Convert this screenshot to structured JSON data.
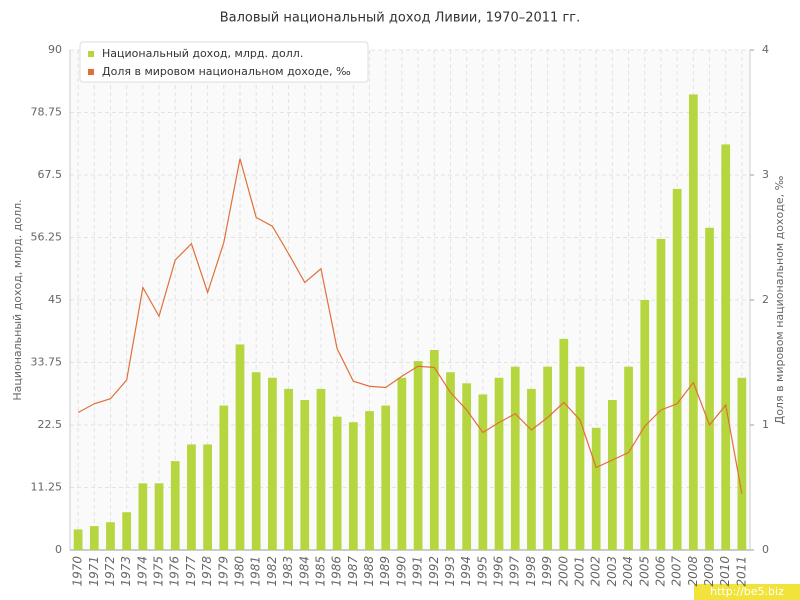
{
  "chart_data": {
    "type": "bar_line",
    "title": "Валовый национальный доход Ливии, 1970–2011 гг.",
    "y_label": "Национальный доход, млрд. долл.",
    "y2_label": "Доля в мировом национальном доходе, ‰",
    "watermark": "http://be5.biz",
    "categories": [
      "1970",
      "1971",
      "1972",
      "1973",
      "1974",
      "1975",
      "1976",
      "1977",
      "1978",
      "1979",
      "1980",
      "1981",
      "1982",
      "1983",
      "1984",
      "1985",
      "1986",
      "1987",
      "1988",
      "1989",
      "1990",
      "1991",
      "1992",
      "1993",
      "1994",
      "1995",
      "1996",
      "1997",
      "1998",
      "1999",
      "2000",
      "2001",
      "2002",
      "2003",
      "2004",
      "2005",
      "2006",
      "2007",
      "2008",
      "2009",
      "2010",
      "2011"
    ],
    "series": [
      {
        "name": "Национальный доход, млрд. долл.",
        "color": "#b5d63e",
        "kind": "bar",
        "values": [
          3.7,
          4.3,
          5.0,
          6.8,
          12,
          12,
          16,
          19,
          19,
          26,
          37,
          32,
          31,
          29,
          27,
          29,
          24,
          23,
          25,
          26,
          31,
          34,
          36,
          32,
          30,
          28,
          31,
          33,
          29,
          33,
          38,
          33,
          22,
          27,
          33,
          45,
          56,
          65,
          82,
          58,
          73,
          31
        ]
      },
      {
        "name": "Доля в мировом национальном доходе, ‰",
        "color": "#e0703a",
        "kind": "line",
        "axis": "y2",
        "values": [
          1.1,
          1.17,
          1.21,
          1.36,
          2.1,
          1.87,
          2.32,
          2.45,
          2.06,
          2.46,
          3.13,
          2.66,
          2.59,
          2.37,
          2.14,
          2.25,
          1.61,
          1.35,
          1.31,
          1.3,
          1.39,
          1.47,
          1.46,
          1.26,
          1.12,
          0.94,
          1.02,
          1.09,
          0.96,
          1.06,
          1.18,
          1.04,
          0.66,
          0.72,
          0.78,
          0.99,
          1.12,
          1.17,
          1.34,
          1.0,
          1.16,
          0.45
        ]
      }
    ],
    "ylim": [
      0,
      90
    ],
    "yticks": [
      0,
      11.25,
      22.5,
      33.75,
      45,
      56.25,
      67.5,
      78.75,
      90
    ],
    "y2lim": [
      0,
      4
    ],
    "y2ticks": [
      0,
      1,
      2,
      3,
      4
    ],
    "grid": true,
    "legend": "top-left"
  }
}
